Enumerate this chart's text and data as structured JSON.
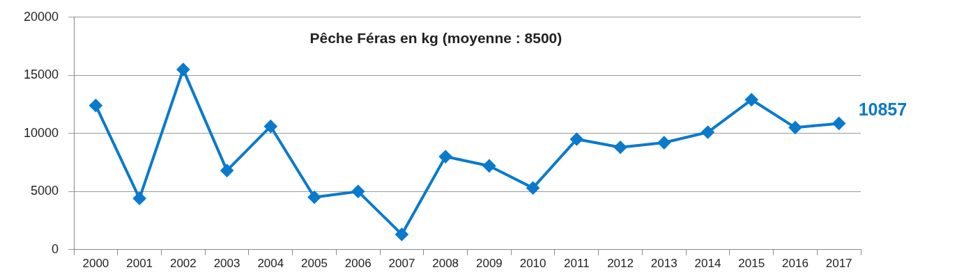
{
  "chart_data": {
    "type": "line",
    "title": "Pêche Féras en kg (moyenne : 8500)",
    "categories": [
      "2000",
      "2001",
      "2002",
      "2003",
      "2004",
      "2005",
      "2006",
      "2007",
      "2008",
      "2009",
      "2010",
      "2011",
      "2012",
      "2013",
      "2014",
      "2015",
      "2016",
      "2017"
    ],
    "series": [
      {
        "color": "#0a7acc",
        "values": [
          12400,
          4400,
          15500,
          6800,
          10600,
          4500,
          5000,
          1300,
          8000,
          7200,
          5300,
          9500,
          8800,
          9200,
          10100,
          12900,
          10500,
          10857
        ],
        "value_labels": [
          null,
          null,
          null,
          null,
          null,
          null,
          null,
          null,
          null,
          null,
          null,
          null,
          null,
          null,
          null,
          null,
          null,
          "10857"
        ]
      }
    ],
    "ylim": [
      0,
      20000
    ],
    "yticks": [
      0,
      5000,
      10000,
      15000,
      20000
    ],
    "grid": "y",
    "legend": false,
    "marker": "diamond",
    "line_style": "solid"
  }
}
